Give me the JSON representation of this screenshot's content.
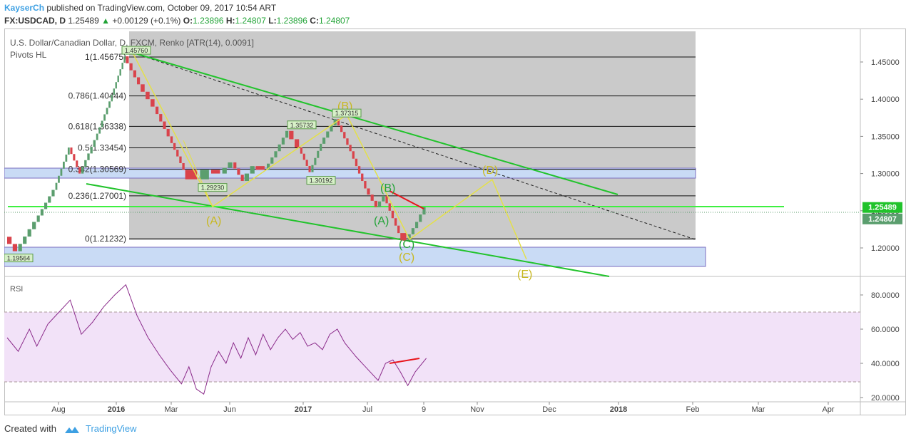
{
  "header": {
    "author": "KayserCh",
    "published": "published on TradingView.com, October 09, 2017 10:54 ART",
    "symbol": "FX:USDCAD",
    "timeframe": "D",
    "last": "1.25489",
    "change_arrow": "▲",
    "change": "+0.00129 (+0.1%)",
    "o_label": "O:",
    "o_value": "1.23896",
    "h_label": "H:",
    "h_value": "1.24807",
    "l_label": "L:",
    "l_value": "1.23896",
    "c_label": "C:",
    "c_value": "1.24807"
  },
  "chart_title": "U.S. Dollar/Canadian Dollar, D, FXCM, Renko [ATR(14), 0.0091]",
  "pivots_label": "Pivots HL",
  "colors": {
    "up_brick": "#5b9e6e",
    "down_brick": "#d9434b",
    "fib_zone": "#cacaca",
    "green_line": "#21c32b",
    "yellow_line": "#e4e049",
    "blue_zone": "#c9dbf5",
    "rsi_zone": "#f2e2f8",
    "rsi_line": "#8a2a8a",
    "red_line": "#e8141b"
  },
  "chart_data": [
    {
      "type": "line",
      "name": "USDCAD Renko (approximate trace)",
      "x_ticks": [
        "Aug",
        "2016",
        "Mar",
        "Jun",
        "2017",
        "Jul",
        "9",
        "Nov",
        "Dec",
        "2018",
        "Feb",
        "Mar",
        "Apr"
      ],
      "y_ticks": [
        "1.45000",
        "1.40000",
        "1.35000",
        "1.30000",
        "1.25000",
        "1.20000"
      ],
      "ylim": [
        1.155,
        1.48
      ],
      "price_path": [
        {
          "i": 0,
          "v": 1.215
        },
        {
          "i": 3,
          "v": 1.1956
        },
        {
          "i": 8,
          "v": 1.235
        },
        {
          "i": 13,
          "v": 1.278
        },
        {
          "i": 17,
          "v": 1.335
        },
        {
          "i": 20,
          "v": 1.3
        },
        {
          "i": 24,
          "v": 1.345
        },
        {
          "i": 28,
          "v": 1.397
        },
        {
          "i": 32,
          "v": 1.4576
        },
        {
          "i": 36,
          "v": 1.42
        },
        {
          "i": 40,
          "v": 1.39
        },
        {
          "i": 44,
          "v": 1.35
        },
        {
          "i": 48,
          "v": 1.305
        },
        {
          "i": 52,
          "v": 1.2923
        },
        {
          "i": 55,
          "v": 1.305
        },
        {
          "i": 58,
          "v": 1.3
        },
        {
          "i": 61,
          "v": 1.315
        },
        {
          "i": 64,
          "v": 1.29
        },
        {
          "i": 67,
          "v": 1.31
        },
        {
          "i": 70,
          "v": 1.305
        },
        {
          "i": 73,
          "v": 1.33
        },
        {
          "i": 76,
          "v": 1.3573
        },
        {
          "i": 79,
          "v": 1.335
        },
        {
          "i": 82,
          "v": 1.3019
        },
        {
          "i": 85,
          "v": 1.34
        },
        {
          "i": 89,
          "v": 1.3732
        },
        {
          "i": 93,
          "v": 1.33
        },
        {
          "i": 97,
          "v": 1.28
        },
        {
          "i": 100,
          "v": 1.255
        },
        {
          "i": 102,
          "v": 1.27
        },
        {
          "i": 106,
          "v": 1.22
        },
        {
          "i": 108,
          "v": 1.21
        },
        {
          "i": 111,
          "v": 1.235
        },
        {
          "i": 113,
          "v": 1.2549
        }
      ],
      "price_labels": [
        {
          "text": "1.45760",
          "v": 1.4576
        },
        {
          "text": "1.37315",
          "v": 1.3732
        },
        {
          "text": "1.35732",
          "v": 1.3573
        },
        {
          "text": "1.30192",
          "v": 1.3019
        },
        {
          "text": "1.29230",
          "v": 1.2923
        },
        {
          "text": "1.19564",
          "v": 1.1956
        }
      ],
      "fib_levels": [
        {
          "label": "1(1.45675)",
          "v": 1.45675
        },
        {
          "label": "0.786(1.40444)",
          "v": 1.40444
        },
        {
          "label": "0.618(1.36338)",
          "v": 1.36338
        },
        {
          "label": "0.5(1.33454)",
          "v": 1.33454
        },
        {
          "label": "0.382(1.30569)",
          "v": 1.30569
        },
        {
          "label": "0.236(1.27001)",
          "v": 1.27001
        },
        {
          "label": "0(1.21232)",
          "v": 1.21232
        }
      ],
      "wave_labels": [
        {
          "text": "(A)",
          "color": "yellow"
        },
        {
          "text": "(B)",
          "color": "yellow"
        },
        {
          "text": "(C)",
          "color": "yellow"
        },
        {
          "text": "(D)",
          "color": "yellow"
        },
        {
          "text": "(E)",
          "color": "yellow"
        },
        {
          "text": "(A)",
          "color": "green"
        },
        {
          "text": "(B)",
          "color": "green"
        },
        {
          "text": "(C)",
          "color": "green"
        }
      ],
      "price_badges": [
        {
          "text": "1.25489",
          "v": 1.25489,
          "color": "#21c32b"
        },
        {
          "text": "1.24807",
          "v": 1.24807,
          "color": "#5b9e6e"
        }
      ]
    },
    {
      "type": "line",
      "name": "RSI",
      "title": "RSI",
      "y_ticks": [
        "80.0000",
        "60.0000",
        "40.0000",
        "20.0000"
      ],
      "ylim": [
        18,
        90
      ],
      "band": [
        30,
        70
      ],
      "values": [
        {
          "i": 0,
          "v": 55
        },
        {
          "i": 3,
          "v": 47
        },
        {
          "i": 6,
          "v": 60
        },
        {
          "i": 8,
          "v": 50
        },
        {
          "i": 11,
          "v": 63
        },
        {
          "i": 14,
          "v": 70
        },
        {
          "i": 17,
          "v": 77
        },
        {
          "i": 20,
          "v": 57
        },
        {
          "i": 23,
          "v": 64
        },
        {
          "i": 26,
          "v": 73
        },
        {
          "i": 29,
          "v": 80
        },
        {
          "i": 32,
          "v": 86
        },
        {
          "i": 35,
          "v": 68
        },
        {
          "i": 38,
          "v": 55
        },
        {
          "i": 41,
          "v": 45
        },
        {
          "i": 44,
          "v": 36
        },
        {
          "i": 47,
          "v": 28
        },
        {
          "i": 49,
          "v": 38
        },
        {
          "i": 51,
          "v": 25
        },
        {
          "i": 53,
          "v": 22
        },
        {
          "i": 55,
          "v": 38
        },
        {
          "i": 57,
          "v": 47
        },
        {
          "i": 59,
          "v": 40
        },
        {
          "i": 61,
          "v": 52
        },
        {
          "i": 63,
          "v": 43
        },
        {
          "i": 65,
          "v": 55
        },
        {
          "i": 67,
          "v": 45
        },
        {
          "i": 69,
          "v": 57
        },
        {
          "i": 71,
          "v": 48
        },
        {
          "i": 73,
          "v": 55
        },
        {
          "i": 75,
          "v": 60
        },
        {
          "i": 77,
          "v": 54
        },
        {
          "i": 79,
          "v": 58
        },
        {
          "i": 81,
          "v": 50
        },
        {
          "i": 83,
          "v": 52
        },
        {
          "i": 85,
          "v": 48
        },
        {
          "i": 87,
          "v": 57
        },
        {
          "i": 89,
          "v": 60
        },
        {
          "i": 91,
          "v": 52
        },
        {
          "i": 94,
          "v": 44
        },
        {
          "i": 97,
          "v": 37
        },
        {
          "i": 100,
          "v": 30
        },
        {
          "i": 102,
          "v": 40
        },
        {
          "i": 104,
          "v": 42
        },
        {
          "i": 106,
          "v": 35
        },
        {
          "i": 108,
          "v": 27
        },
        {
          "i": 110,
          "v": 35
        },
        {
          "i": 113,
          "v": 43
        }
      ]
    }
  ],
  "footer": {
    "created_with": "Created with",
    "brand": "TradingView"
  }
}
